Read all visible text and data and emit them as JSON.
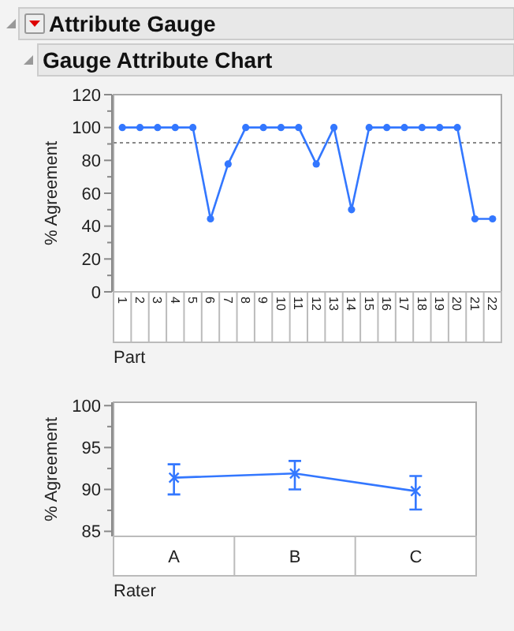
{
  "chart_data": [
    {
      "type": "line",
      "title": "Attribute Gauge",
      "subtitle": "Gauge Attribute Chart",
      "xlabel": "Part",
      "ylabel": "% Agreement",
      "categories": [
        "1",
        "2",
        "3",
        "4",
        "5",
        "6",
        "7",
        "8",
        "9",
        "10",
        "11",
        "12",
        "13",
        "14",
        "15",
        "16",
        "17",
        "18",
        "19",
        "20",
        "21",
        "22"
      ],
      "series": [
        {
          "color": "#3377ff",
          "values": [
            100,
            100,
            100,
            100,
            100,
            44.4,
            77.8,
            100,
            100,
            100,
            100,
            77.8,
            100,
            50,
            100,
            100,
            100,
            100,
            100,
            100,
            44.4,
            44.4
          ]
        }
      ],
      "ylim": [
        0,
        120
      ],
      "yticks": [
        0,
        20,
        40,
        60,
        80,
        100,
        120
      ],
      "marker": "circle",
      "ref_lines": [
        {
          "axis": "y",
          "value": 90.7,
          "color": "#888888",
          "line_style": "dotted"
        }
      ]
    },
    {
      "type": "line",
      "xlabel": "Rater",
      "ylabel": "% Agreement",
      "categories": [
        "A",
        "B",
        "C"
      ],
      "series": [
        {
          "color": "#3377ff",
          "values": [
            91.4,
            91.9,
            89.8
          ],
          "errors": [
            [
              89.4,
              93.0
            ],
            [
              90.0,
              93.4
            ],
            [
              87.6,
              91.6
            ]
          ]
        }
      ],
      "ylim": [
        84.4,
        100.4
      ],
      "yticks": [
        85,
        90,
        95,
        100
      ],
      "marker": "cross"
    }
  ]
}
